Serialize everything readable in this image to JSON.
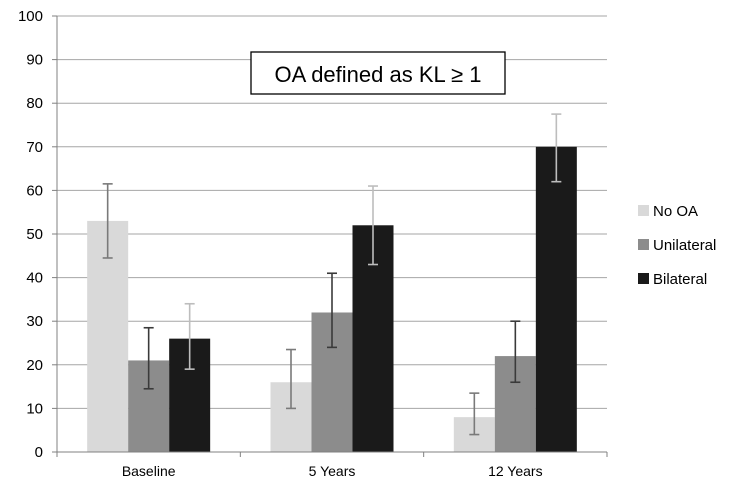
{
  "chart_data": {
    "type": "bar",
    "categories": [
      "Baseline",
      "5 Years",
      "12 Years"
    ],
    "series": [
      {
        "name": "No OA",
        "values": [
          53,
          16,
          8
        ],
        "error_low": [
          44.5,
          10,
          4
        ],
        "error_high": [
          61.5,
          23.5,
          13.5
        ],
        "color": "#d9d9d9",
        "error_color": "#7a7a7a"
      },
      {
        "name": "Unilateral",
        "values": [
          21,
          32,
          22
        ],
        "error_low": [
          14.5,
          24,
          16
        ],
        "error_high": [
          28.5,
          41,
          30
        ],
        "color": "#8c8c8c",
        "error_color": "#3a3a3a"
      },
      {
        "name": "Bilateral",
        "values": [
          26,
          52,
          70
        ],
        "error_low": [
          19,
          43,
          62
        ],
        "error_high": [
          34,
          61,
          77.5
        ],
        "color": "#1a1a1a",
        "error_color": "#bdbdbd"
      }
    ],
    "annotation": "OA defined as KL ≥ 1",
    "ylim": [
      0,
      100
    ],
    "yticks": [
      0,
      10,
      20,
      30,
      40,
      50,
      60,
      70,
      80,
      90,
      100
    ],
    "grid": true,
    "legend_position": "right"
  }
}
